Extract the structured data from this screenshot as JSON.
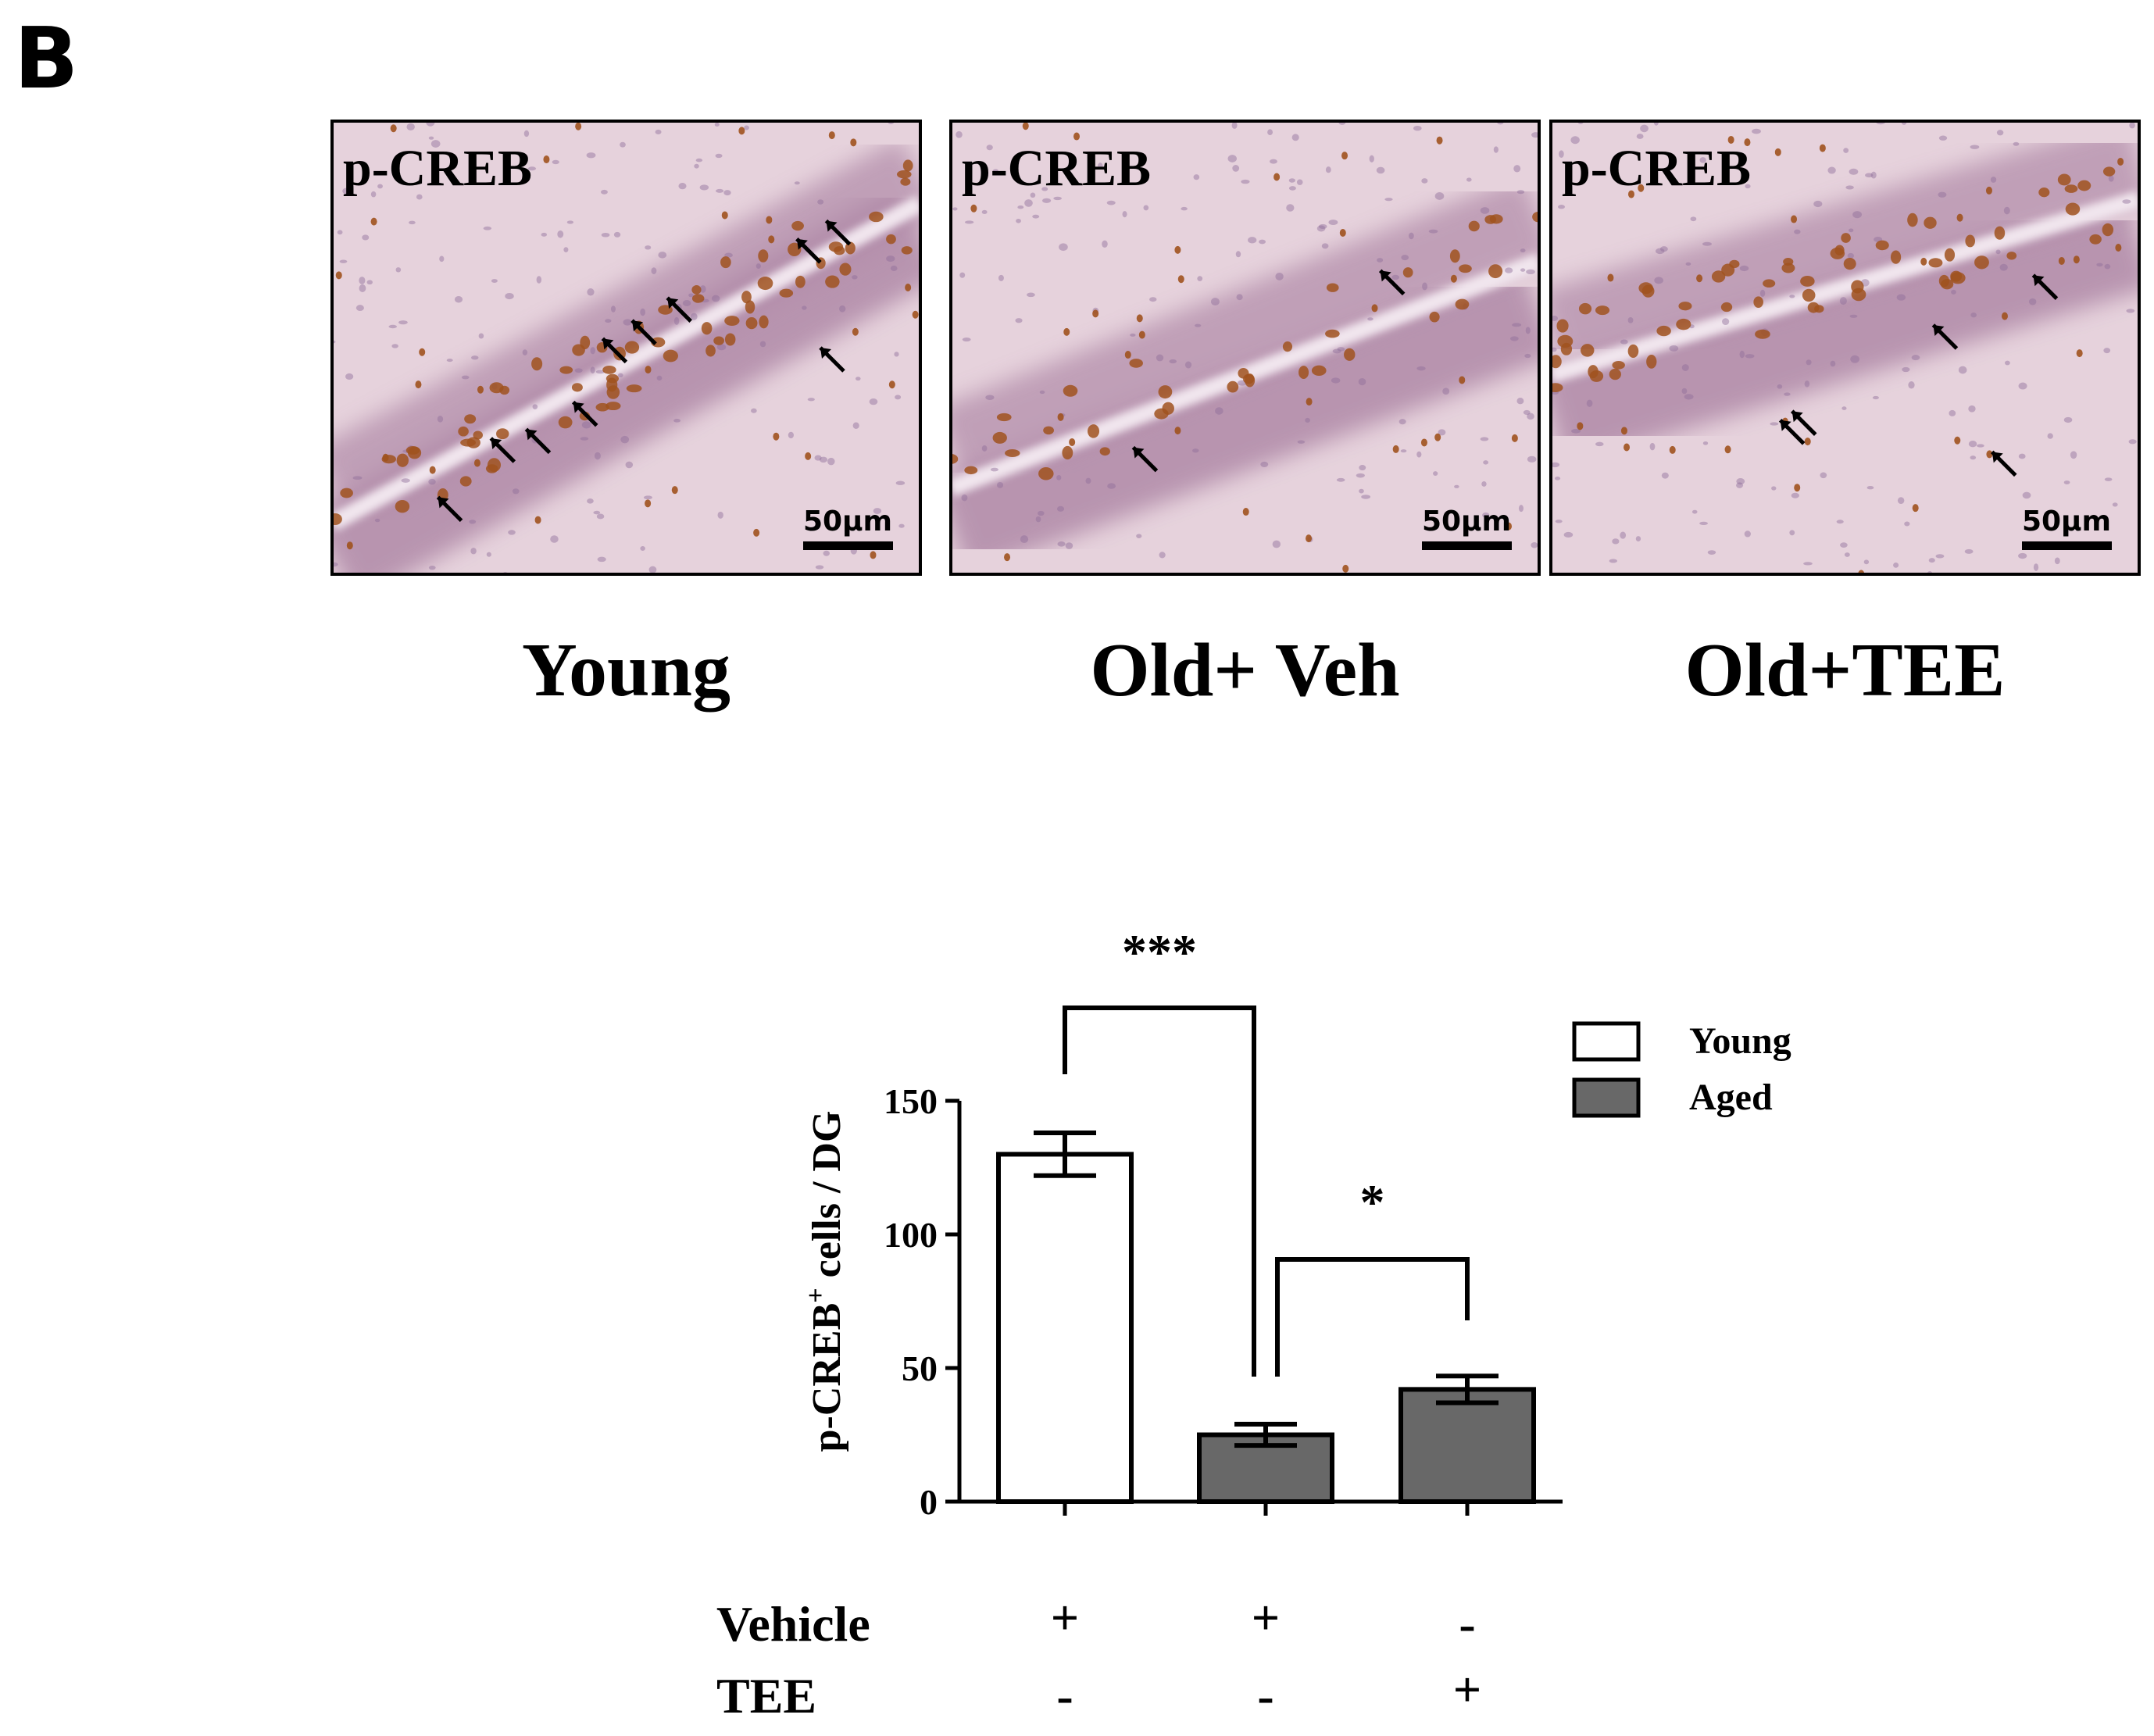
{
  "panel_label": "B",
  "micrographs": [
    {
      "stain_label": "p-CREB",
      "scale_label": "50µm",
      "caption": "Young"
    },
    {
      "stain_label": "p-CREB",
      "scale_label": "50µm",
      "caption": "Old+ Veh"
    },
    {
      "stain_label": "p-CREB",
      "scale_label": "50µm",
      "caption": "Old+TEE"
    }
  ],
  "colors": {
    "tissue_bg": "#e6d2dc",
    "granule_layer": "#b08aa8",
    "positive_nuclei": "#a0521e",
    "young_fill": "#ffffff",
    "aged_fill": "#686868"
  },
  "chart_data": {
    "type": "bar",
    "ylabel_main": "p-CREB",
    "ylabel_sup": "+",
    "ylabel_rest": " cells / DG",
    "ylim": [
      0,
      150
    ],
    "yticks": [
      "0",
      "50",
      "100",
      "150"
    ],
    "categories": [
      "Young Vehicle",
      "Aged Vehicle",
      "Aged TEE"
    ],
    "values": [
      130,
      25,
      42
    ],
    "errors": [
      8,
      4,
      5
    ],
    "groups": [
      "Young",
      "Aged",
      "Aged"
    ],
    "legend": [
      {
        "label": "Young",
        "color": "#ffffff"
      },
      {
        "label": "Aged",
        "color": "#686868"
      }
    ],
    "legend_position": "top-right",
    "significance": [
      {
        "from": 0,
        "to": 1,
        "label": "***"
      },
      {
        "from": 1,
        "to": 2,
        "label": "*"
      }
    ],
    "treatment_table": [
      {
        "label": "Vehicle",
        "values": [
          "+",
          "+",
          "-"
        ]
      },
      {
        "label": "TEE",
        "values": [
          "-",
          "-",
          "+"
        ]
      }
    ]
  }
}
